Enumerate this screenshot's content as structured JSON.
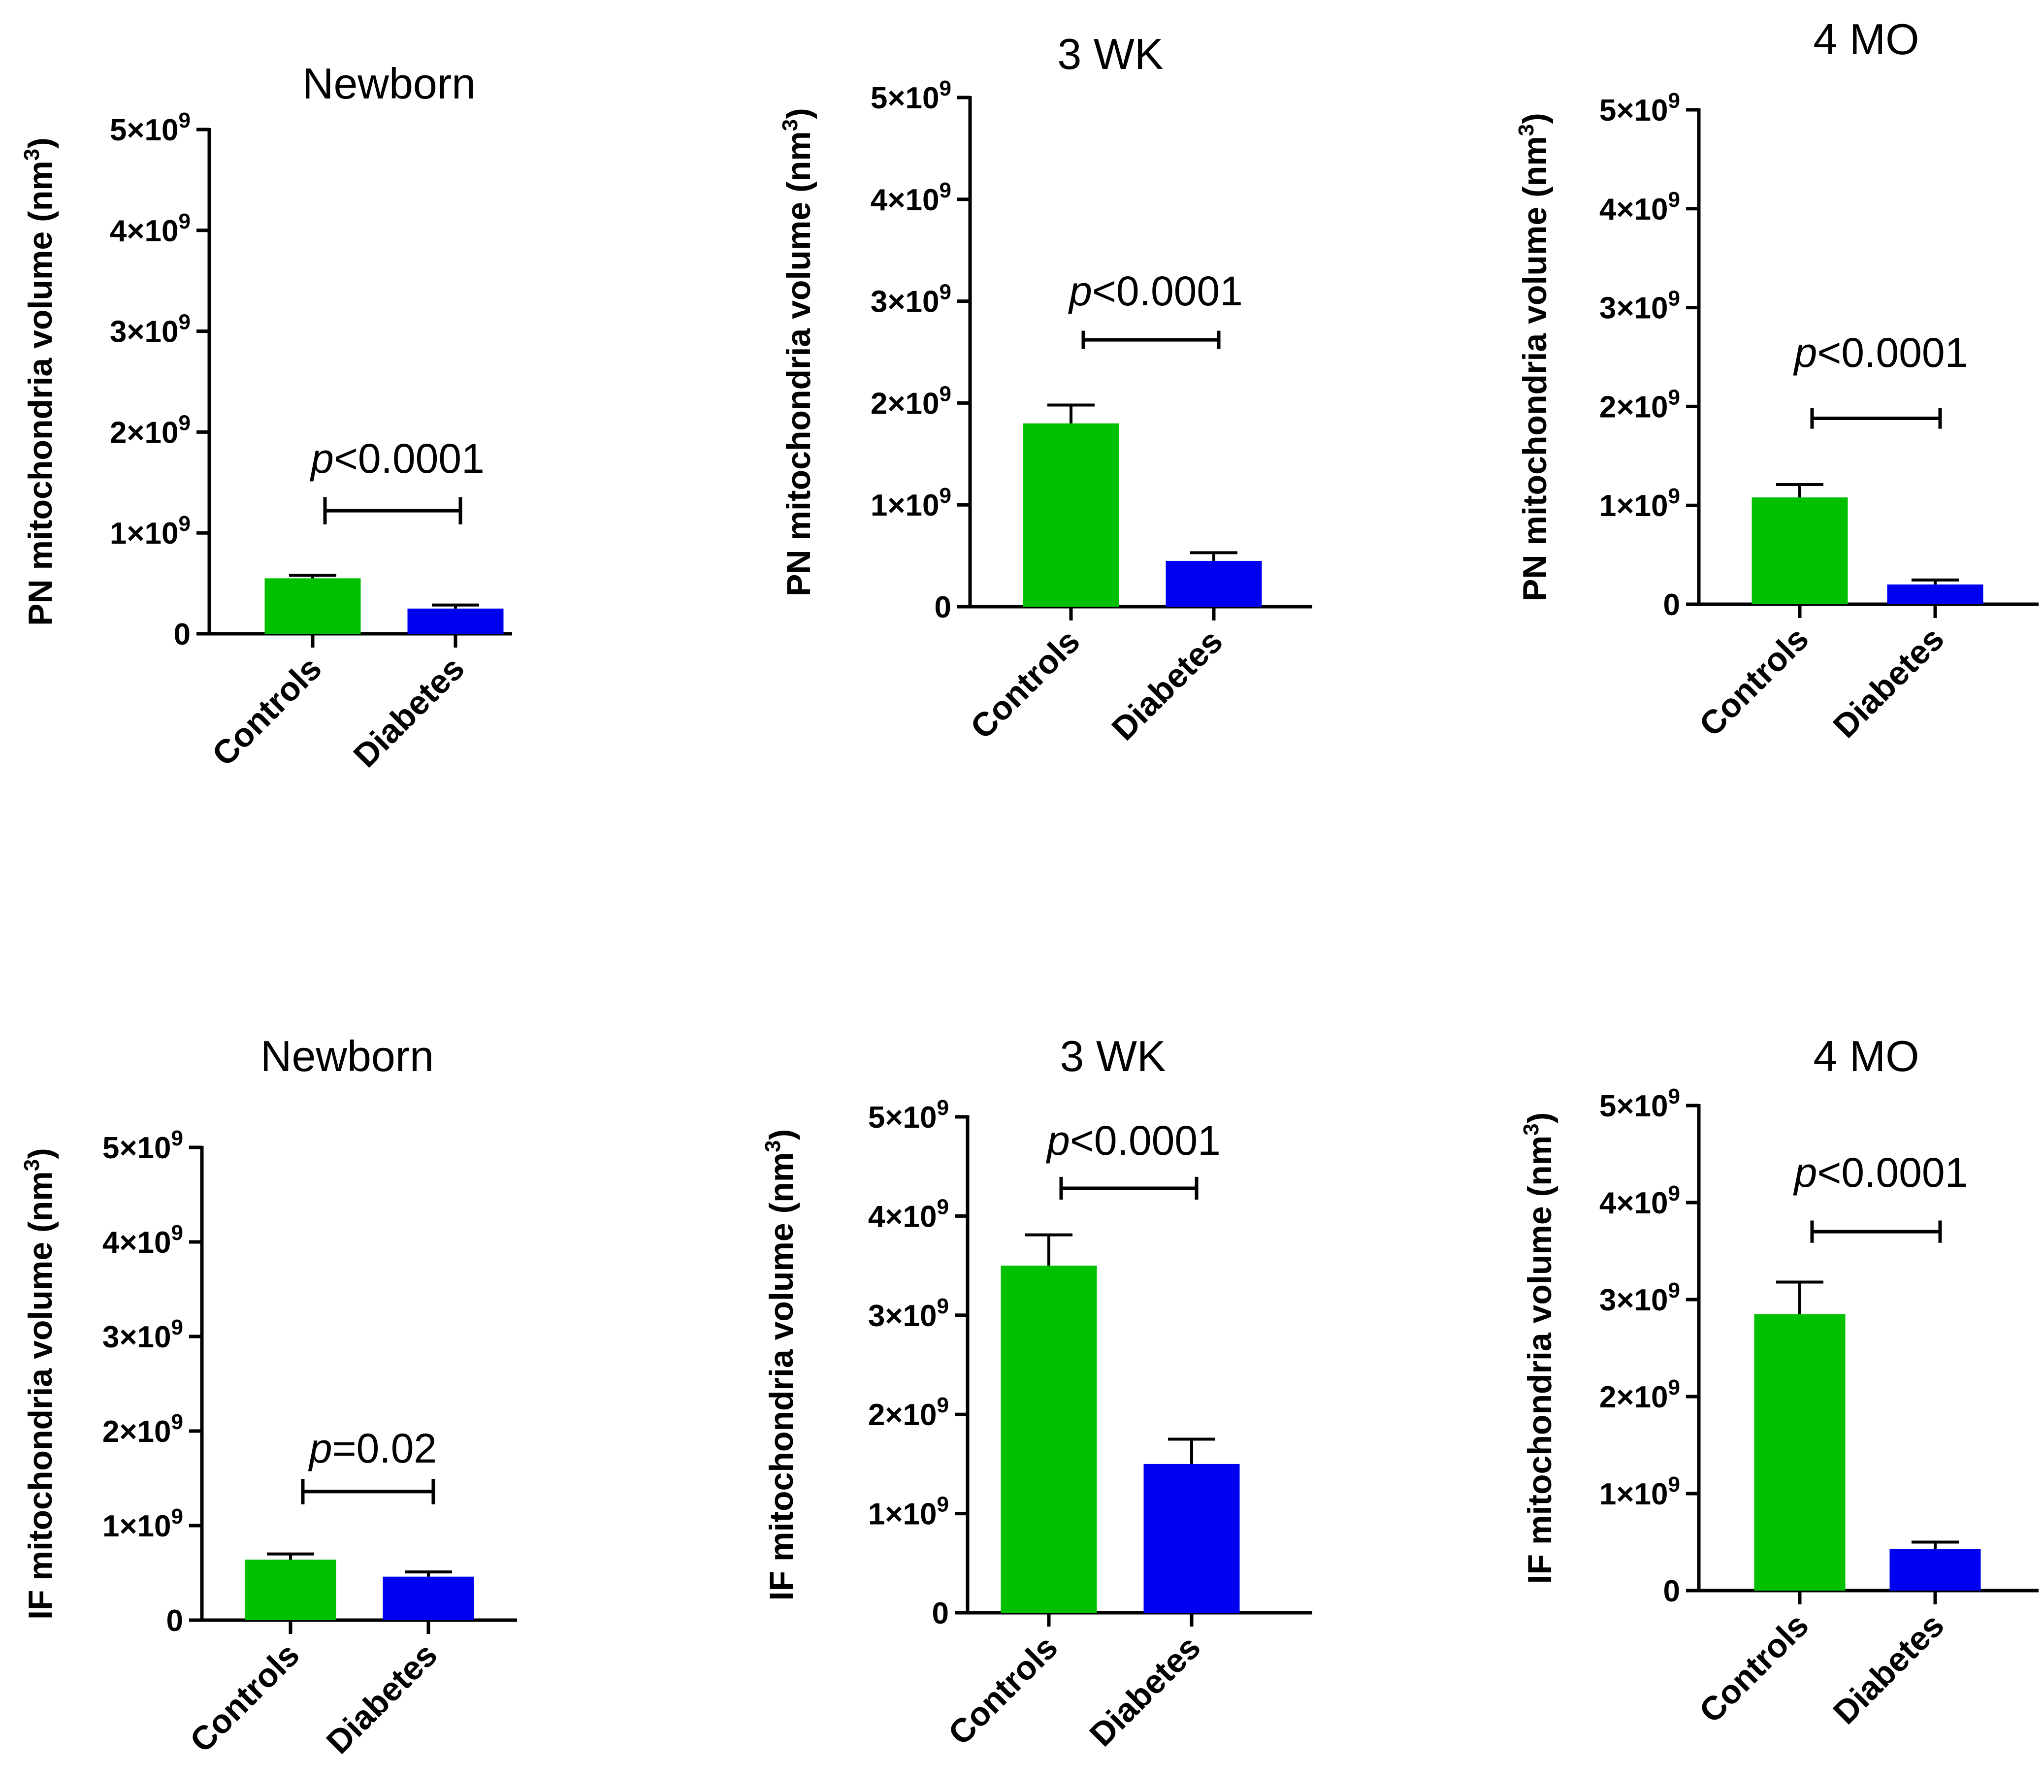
{
  "figure": {
    "colors": {
      "controls": "#00c000",
      "diabetes": "#0000f0",
      "axis": "#000000"
    }
  },
  "chart_data": [
    {
      "type": "bar",
      "title": "Newborn",
      "ylabel": "PN mitochondria volume (nm",
      "ylabel_sup": "3",
      "ylabel_close": ")",
      "categories": [
        "Controls",
        "Diabetes"
      ],
      "values": [
        550000000,
        250000000
      ],
      "errors": [
        30000000,
        35000000
      ],
      "ylim": [
        0,
        5000000000
      ],
      "yticks": [
        {
          "value": 0,
          "base": "0",
          "exp": ""
        },
        {
          "value": 1000000000,
          "base": "1×10",
          "exp": "9"
        },
        {
          "value": 2000000000,
          "base": "2×10",
          "exp": "9"
        },
        {
          "value": 3000000000,
          "base": "3×10",
          "exp": "9"
        },
        {
          "value": 4000000000,
          "base": "4×10",
          "exp": "9"
        },
        {
          "value": 5000000000,
          "base": "5×10",
          "exp": "9"
        }
      ],
      "sig": {
        "italic": "p",
        "rest": "<0.0001",
        "bracket_value": 1220000000,
        "tick_value": 270000000
      }
    },
    {
      "type": "bar",
      "title": "3 WK",
      "ylabel": "PN mitochondria volume (nm",
      "ylabel_sup": "3",
      "ylabel_close": ")",
      "categories": [
        "Controls",
        "Diabetes"
      ],
      "values": [
        1800000000,
        450000000
      ],
      "errors": [
        180000000,
        80000000
      ],
      "ylim": [
        0,
        5000000000
      ],
      "yticks": [
        {
          "value": 0,
          "base": "0",
          "exp": ""
        },
        {
          "value": 1000000000,
          "base": "1×10",
          "exp": "9"
        },
        {
          "value": 2000000000,
          "base": "2×10",
          "exp": "9"
        },
        {
          "value": 3000000000,
          "base": "3×10",
          "exp": "9"
        },
        {
          "value": 4000000000,
          "base": "4×10",
          "exp": "9"
        },
        {
          "value": 5000000000,
          "base": "5×10",
          "exp": "9"
        }
      ],
      "sig": {
        "italic": "p",
        "rest": "<0.0001",
        "bracket_value": 2620000000,
        "tick_value": 180000000
      }
    },
    {
      "type": "bar",
      "title": "4  MO",
      "ylabel": "PN mitochondria volume (nm",
      "ylabel_sup": "3",
      "ylabel_close": ")",
      "categories": [
        "Controls",
        "Diabetes"
      ],
      "values": [
        1080000000,
        200000000
      ],
      "errors": [
        130000000,
        45000000
      ],
      "ylim": [
        0,
        5000000000
      ],
      "yticks": [
        {
          "value": 0,
          "base": "0",
          "exp": ""
        },
        {
          "value": 1000000000,
          "base": "1×10",
          "exp": "9"
        },
        {
          "value": 2000000000,
          "base": "2×10",
          "exp": "9"
        },
        {
          "value": 3000000000,
          "base": "3×10",
          "exp": "9"
        },
        {
          "value": 4000000000,
          "base": "4×10",
          "exp": "9"
        },
        {
          "value": 5000000000,
          "base": "5×10",
          "exp": "9"
        }
      ],
      "sig": {
        "italic": "p",
        "rest": "<0.0001",
        "bracket_value": 1880000000,
        "tick_value": 210000000
      }
    },
    {
      "type": "bar",
      "title": "Newborn",
      "ylabel": "IF mitochondria volume (nm",
      "ylabel_sup": "3",
      "ylabel_close": ")",
      "categories": [
        "Controls",
        "Diabetes"
      ],
      "values": [
        640000000,
        460000000
      ],
      "errors": [
        60000000,
        50000000
      ],
      "ylim": [
        0,
        5000000000
      ],
      "yticks": [
        {
          "value": 0,
          "base": "0",
          "exp": ""
        },
        {
          "value": 1000000000,
          "base": "1×10",
          "exp": "9"
        },
        {
          "value": 2000000000,
          "base": "2×10",
          "exp": "9"
        },
        {
          "value": 3000000000,
          "base": "3×10",
          "exp": "9"
        },
        {
          "value": 4000000000,
          "base": "4×10",
          "exp": "9"
        },
        {
          "value": 5000000000,
          "base": "5×10",
          "exp": "9"
        }
      ],
      "sig": {
        "italic": "p",
        "rest": "=0.02",
        "bracket_value": 1360000000,
        "tick_value": 270000000
      }
    },
    {
      "type": "bar",
      "title": "3 WK",
      "ylabel": "IF mitochondria volume (nm",
      "ylabel_sup": "3",
      "ylabel_close": ")",
      "categories": [
        "Controls",
        "Diabetes"
      ],
      "values": [
        3500000000,
        1500000000
      ],
      "errors": [
        310000000,
        250000000
      ],
      "ylim": [
        0,
        5000000000
      ],
      "yticks": [
        {
          "value": 0,
          "base": "0",
          "exp": ""
        },
        {
          "value": 1000000000,
          "base": "1×10",
          "exp": "9"
        },
        {
          "value": 2000000000,
          "base": "2×10",
          "exp": "9"
        },
        {
          "value": 3000000000,
          "base": "3×10",
          "exp": "9"
        },
        {
          "value": 4000000000,
          "base": "4×10",
          "exp": "9"
        },
        {
          "value": 5000000000,
          "base": "5×10",
          "exp": "9"
        }
      ],
      "sig": {
        "italic": "p",
        "rest": "<0.0001",
        "bracket_value": 4280000000,
        "tick_value": 230000000
      }
    },
    {
      "type": "bar",
      "title": "4  MO",
      "ylabel": "IF mitochondria volume (nm",
      "ylabel_sup": "3",
      "ylabel_close": ")",
      "categories": [
        "Controls",
        "Diabetes"
      ],
      "values": [
        2850000000,
        430000000
      ],
      "errors": [
        330000000,
        70000000
      ],
      "ylim": [
        0,
        5000000000
      ],
      "yticks": [
        {
          "value": 0,
          "base": "0",
          "exp": ""
        },
        {
          "value": 1000000000,
          "base": "1×10",
          "exp": "9"
        },
        {
          "value": 2000000000,
          "base": "2×10",
          "exp": "9"
        },
        {
          "value": 3000000000,
          "base": "3×10",
          "exp": "9"
        },
        {
          "value": 4000000000,
          "base": "4×10",
          "exp": "9"
        },
        {
          "value": 5000000000,
          "base": "5×10",
          "exp": "9"
        }
      ],
      "sig": {
        "italic": "p",
        "rest": "<0.0001",
        "bracket_value": 3700000000,
        "tick_value": 230000000
      }
    }
  ]
}
